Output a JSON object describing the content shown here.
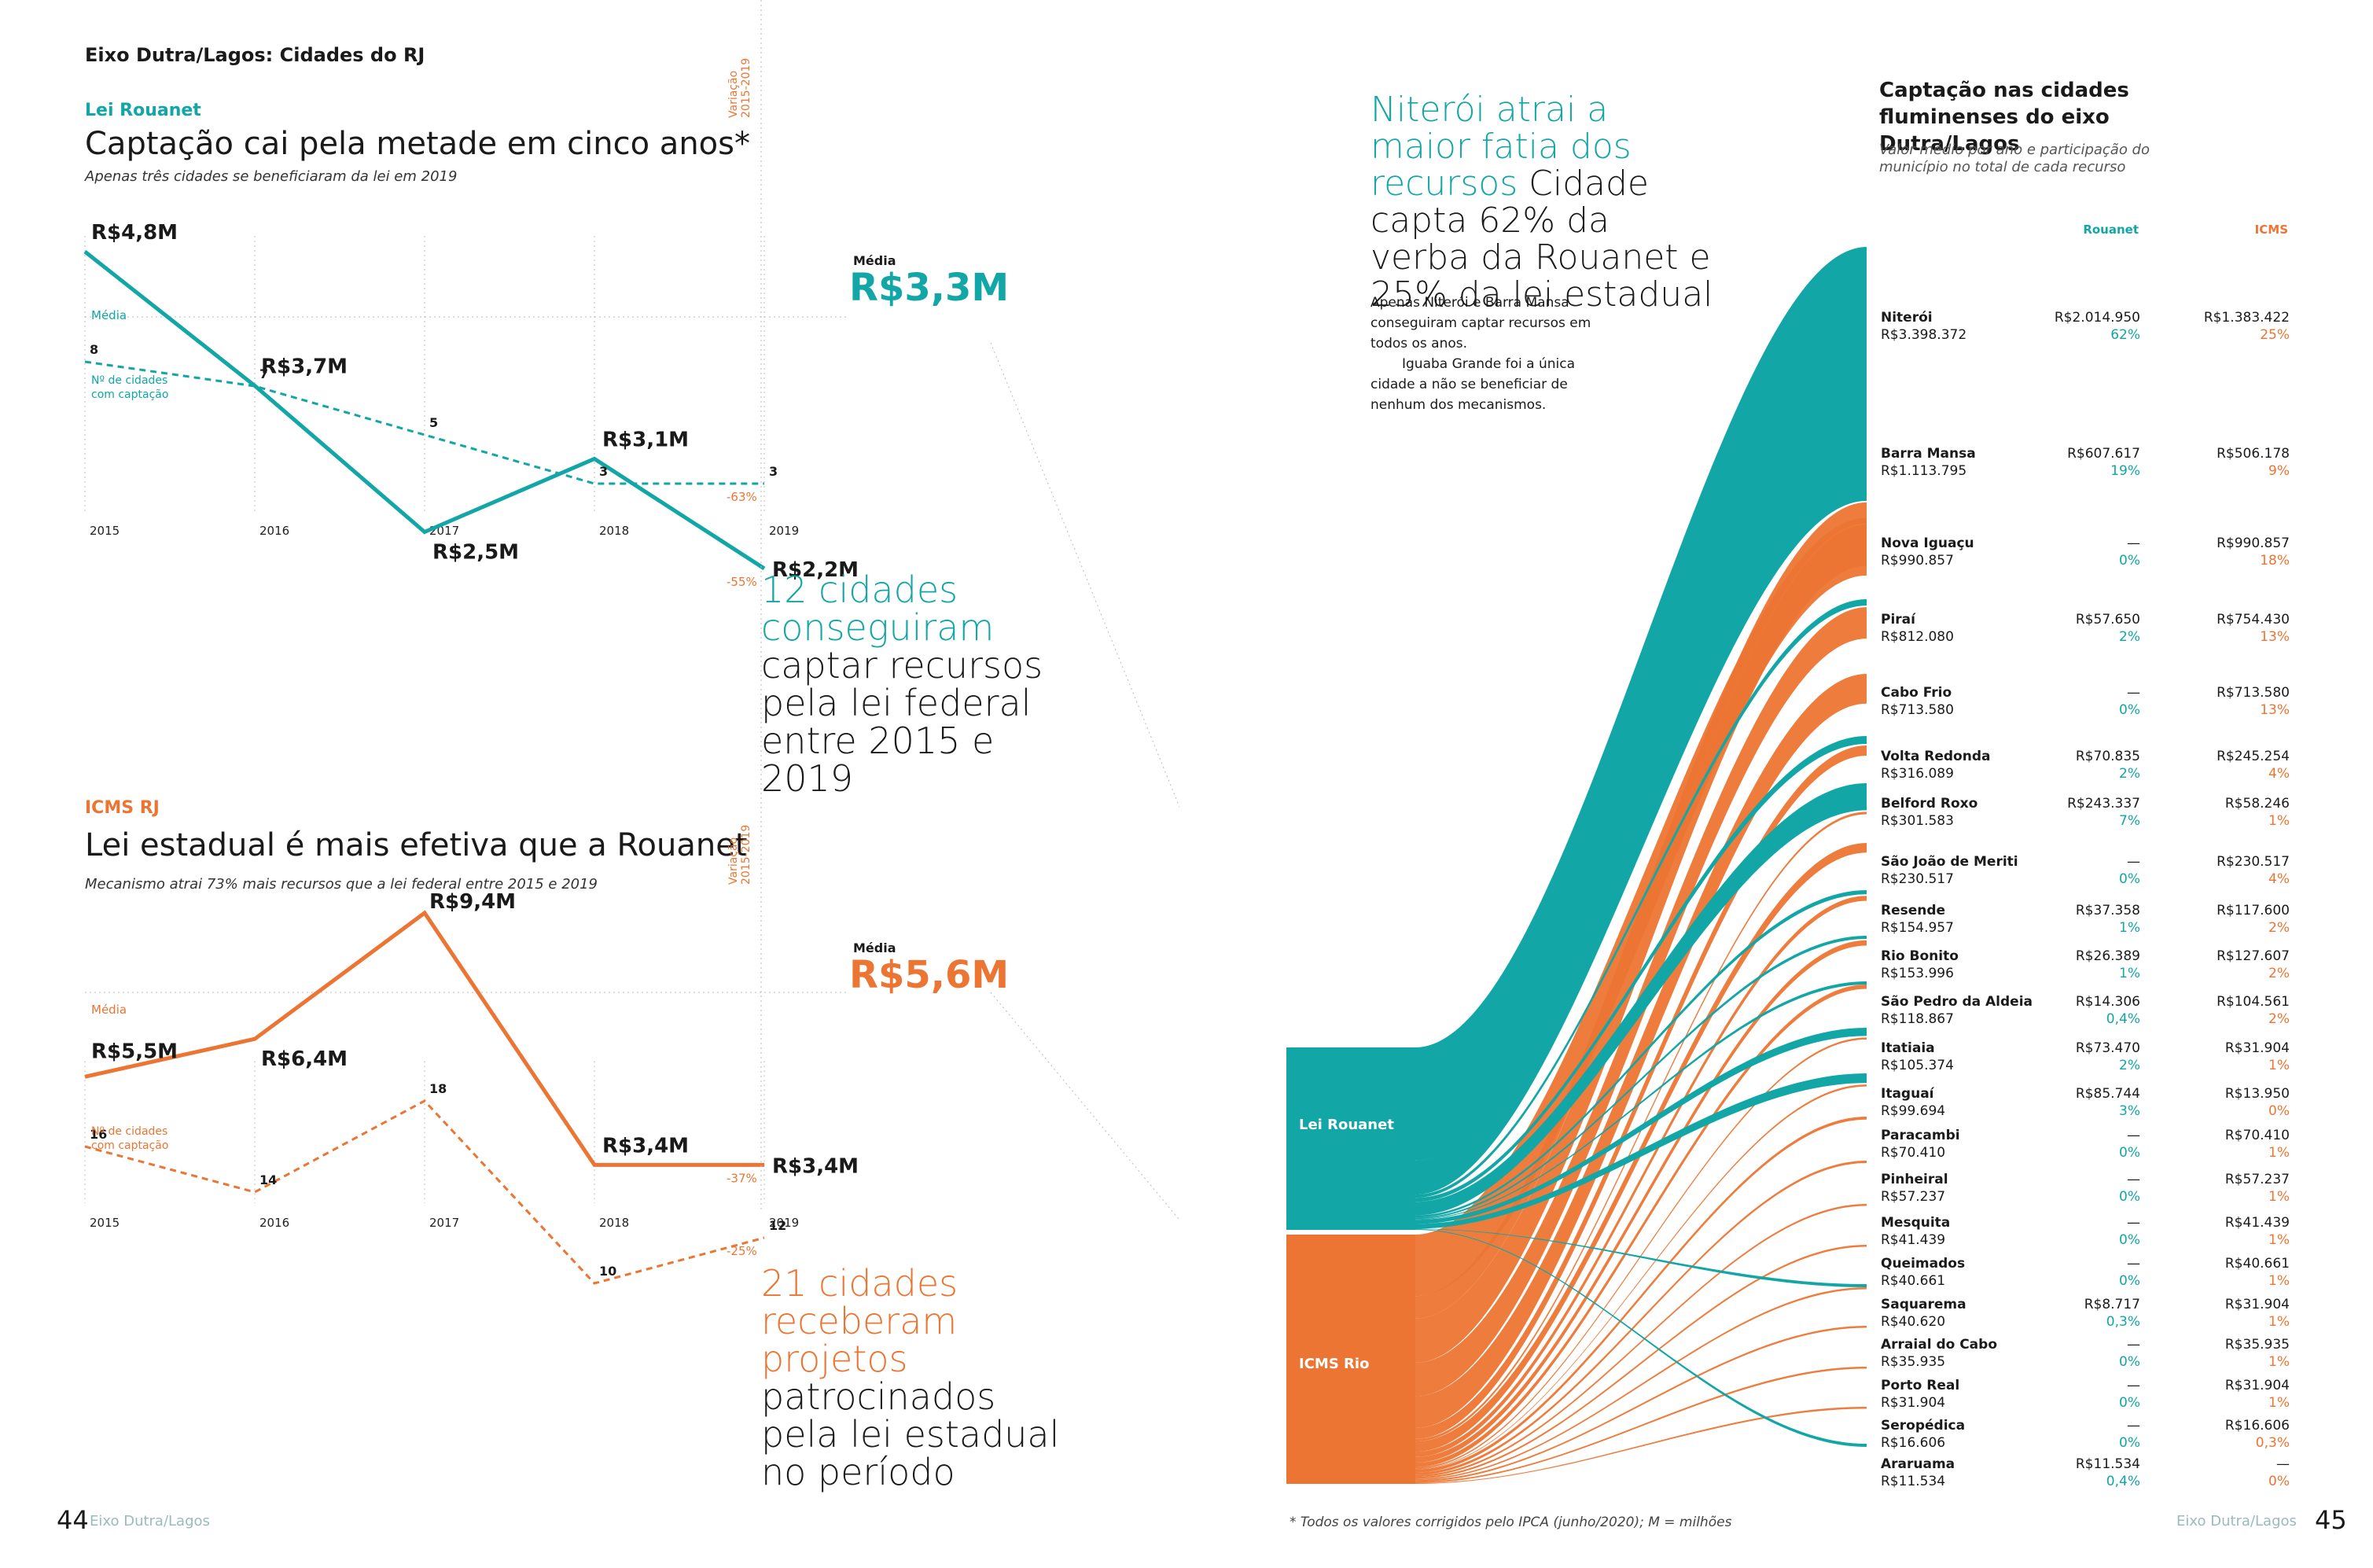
{
  "header": {
    "kicker": "Eixo Dutra/Lagos: Cidades do RJ"
  },
  "rouanet": {
    "label": "Lei Rouanet",
    "title": "Captação cai pela metade em cinco anos*",
    "subtitle": "Apenas três cidades se beneficiaram da lei em 2019",
    "variacao_label": "Variação 2015-2019",
    "media_caption": "Média",
    "media_small": "Média",
    "media_value": "R$3,3M",
    "count_caption": "Nº de cidades com captação"
  },
  "icms": {
    "label": "ICMS RJ",
    "title": "Lei estadual é mais efetiva que a Rouanet",
    "subtitle": "Mecanismo atrai 73% mais recursos que a lei federal entre 2015 e 2019",
    "variacao_label": "Variação 2015-2019",
    "media_caption": "Média",
    "media_small": "Média",
    "media_value": "R$5,6M",
    "count_caption": "Nº de cidades com captação"
  },
  "narrative": {
    "rouanet_teal": "12 cidades conseguiram",
    "rouanet_rest": "captar recursos pela lei federal entre 2015 e 2019",
    "icms_orange": "21 cidades receberam projetos",
    "icms_rest": "patrocinados pela lei estadual no período",
    "right_teal": "Niterói atrai a maior fatia dos recursos",
    "right_rest": "Cidade capta 62% da verba da Rouanet e 25% da lei estadual",
    "right_p1": "Apenas Niterói e Barra Mansa conseguiram captar recursos em todos os anos.",
    "right_p2": "Iguaba Grande foi a única cidade a não se beneficiar de nenhum dos mecanismos."
  },
  "table": {
    "title": "Captação nas cidades fluminenses do eixo Dutra/Lagos",
    "subtitle": "Valor médio por ano e participação do município no total de cada recurso",
    "col_rouanet": "Rouanet",
    "col_icms": "ICMS",
    "source_rouanet": "Lei Rouanet",
    "source_icms": "ICMS Rio"
  },
  "footer": {
    "page_left": "44",
    "page_right": "45",
    "section_left": "Eixo Dutra/Lagos",
    "section_right": "Eixo Dutra/Lagos",
    "note": "*  Todos os valores corrigidos pelo IPCA (junho/2020); M = milhões"
  },
  "colors": {
    "teal": "#12a6a6",
    "orange": "#ec7533",
    "olive": "#5b5a1f"
  },
  "chart_data": [
    {
      "type": "line",
      "x": [
        "2015",
        "2016",
        "2017",
        "2018",
        "2019"
      ],
      "series": [
        {
          "values": [
            4.8,
            3.7,
            2.5,
            3.1,
            2.2
          ],
          "labels": [
            "R$4,8M",
            "R$3,7M",
            "R$2,5M",
            "R$3,1M",
            "R$2,2M"
          ],
          "color": "#12a6a6"
        },
        {
          "values": [
            8,
            7,
            5,
            3,
            3
          ],
          "labels": [
            "8",
            "7",
            "5",
            "3",
            "3"
          ],
          "color": "#12a6a6",
          "style": "dashed"
        }
      ],
      "variation": [
        "-55%",
        "-63%"
      ],
      "average": 3.3
    },
    {
      "type": "line",
      "x": [
        "2015",
        "2016",
        "2017",
        "2018",
        "2019"
      ],
      "series": [
        {
          "values": [
            5.5,
            6.4,
            9.4,
            3.4,
            3.4
          ],
          "labels": [
            "R$5,5M",
            "R$6,4M",
            "R$9,4M",
            "R$3,4M",
            "R$3,4M"
          ],
          "color": "#ec7533"
        },
        {
          "values": [
            16,
            14,
            18,
            10,
            12
          ],
          "labels": [
            "16",
            "14",
            "18",
            "10",
            "12"
          ],
          "color": "#ec7533",
          "style": "dashed"
        }
      ],
      "variation": [
        "-37%",
        "-25%"
      ],
      "average": 5.6
    },
    {
      "type": "table",
      "rows": [
        {
          "city": "Niterói",
          "total": "R$3.398.372",
          "rouanet": "R$2.014.950",
          "rouanet_pct": "62%",
          "icms": "R$1.383.422",
          "icms_pct": "25%"
        },
        {
          "city": "Barra Mansa",
          "total": "R$1.113.795",
          "rouanet": "R$607.617",
          "rouanet_pct": "19%",
          "icms": "R$506.178",
          "icms_pct": "9%"
        },
        {
          "city": "Nova Iguaçu",
          "total": "R$990.857",
          "rouanet": "—",
          "rouanet_pct": "0%",
          "icms": "R$990.857",
          "icms_pct": "18%"
        },
        {
          "city": "Piraí",
          "total": "R$812.080",
          "rouanet": "R$57.650",
          "rouanet_pct": "2%",
          "icms": "R$754.430",
          "icms_pct": "13%"
        },
        {
          "city": "Cabo Frio",
          "total": "R$713.580",
          "rouanet": "—",
          "rouanet_pct": "0%",
          "icms": "R$713.580",
          "icms_pct": "13%"
        },
        {
          "city": "Volta Redonda",
          "total": "R$316.089",
          "rouanet": "R$70.835",
          "rouanet_pct": "2%",
          "icms": "R$245.254",
          "icms_pct": "4%"
        },
        {
          "city": "Belford Roxo",
          "total": "R$301.583",
          "rouanet": "R$243.337",
          "rouanet_pct": "7%",
          "icms": "R$58.246",
          "icms_pct": "1%"
        },
        {
          "city": "São João de Meriti",
          "total": "R$230.517",
          "rouanet": "—",
          "rouanet_pct": "0%",
          "icms": "R$230.517",
          "icms_pct": "4%"
        },
        {
          "city": "Resende",
          "total": "R$154.957",
          "rouanet": "R$37.358",
          "rouanet_pct": "1%",
          "icms": "R$117.600",
          "icms_pct": "2%"
        },
        {
          "city": "Rio Bonito",
          "total": "R$153.996",
          "rouanet": "R$26.389",
          "rouanet_pct": "1%",
          "icms": "R$127.607",
          "icms_pct": "2%"
        },
        {
          "city": "São Pedro da Aldeia",
          "total": "R$118.867",
          "rouanet": "R$14.306",
          "rouanet_pct": "0,4%",
          "icms": "R$104.561",
          "icms_pct": "2%"
        },
        {
          "city": "Itatiaia",
          "total": "R$105.374",
          "rouanet": "R$73.470",
          "rouanet_pct": "2%",
          "icms": "R$31.904",
          "icms_pct": "1%"
        },
        {
          "city": "Itaguaí",
          "total": "R$99.694",
          "rouanet": "R$85.744",
          "rouanet_pct": "3%",
          "icms": "R$13.950",
          "icms_pct": "0%"
        },
        {
          "city": "Paracambi",
          "total": "R$70.410",
          "rouanet": "—",
          "rouanet_pct": "0%",
          "icms": "R$70.410",
          "icms_pct": "1%"
        },
        {
          "city": "Pinheiral",
          "total": "R$57.237",
          "rouanet": "—",
          "rouanet_pct": "0%",
          "icms": "R$57.237",
          "icms_pct": "1%"
        },
        {
          "city": "Mesquita",
          "total": "R$41.439",
          "rouanet": "—",
          "rouanet_pct": "0%",
          "icms": "R$41.439",
          "icms_pct": "1%"
        },
        {
          "city": "Queimados",
          "total": "R$40.661",
          "rouanet": "—",
          "rouanet_pct": "0%",
          "icms": "R$40.661",
          "icms_pct": "1%"
        },
        {
          "city": "Saquarema",
          "total": "R$40.620",
          "rouanet": "R$8.717",
          "rouanet_pct": "0,3%",
          "icms": "R$31.904",
          "icms_pct": "1%"
        },
        {
          "city": "Arraial do Cabo",
          "total": "R$35.935",
          "rouanet": "—",
          "rouanet_pct": "0%",
          "icms": "R$35.935",
          "icms_pct": "1%"
        },
        {
          "city": "Porto Real",
          "total": "R$31.904",
          "rouanet": "—",
          "rouanet_pct": "0%",
          "icms": "R$31.904",
          "icms_pct": "1%"
        },
        {
          "city": "Seropédica",
          "total": "R$16.606",
          "rouanet": "—",
          "rouanet_pct": "0%",
          "icms": "R$16.606",
          "icms_pct": "0,3%"
        },
        {
          "city": "Araruama",
          "total": "R$11.534",
          "rouanet": "R$11.534",
          "rouanet_pct": "0,4%",
          "icms": "—",
          "icms_pct": "0%"
        }
      ]
    }
  ]
}
